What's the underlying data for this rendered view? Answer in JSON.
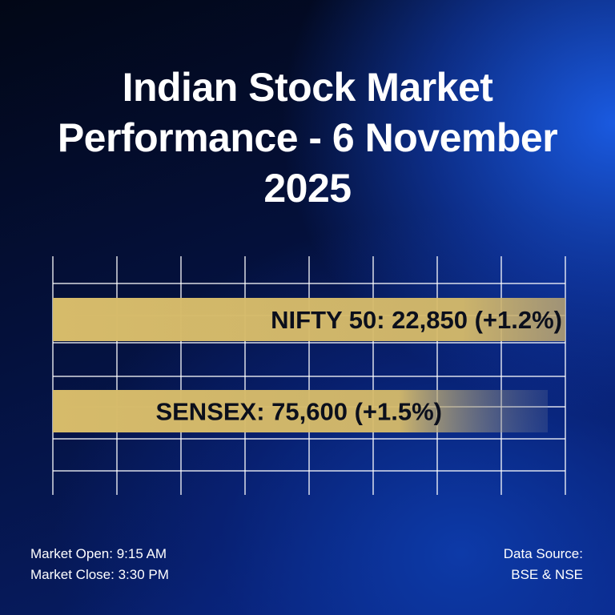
{
  "chart_data": {
    "type": "bar",
    "orientation": "horizontal",
    "title": "Indian Stock Market Performance - 6 November 2025",
    "categories": [
      "NIFTY 50",
      "SENSEX"
    ],
    "bar_labels": [
      "NIFTY 50: 22,850 (+1.2%)",
      "SENSEX: 75,600 (+1.5%)"
    ],
    "values": [
      22850,
      75600
    ],
    "percent_change": [
      1.2,
      1.5
    ],
    "grid": true,
    "bar_color": "#d6bb6a"
  },
  "footer": {
    "market_open": "Market Open: 9:15 AM",
    "market_close": "Market Close: 3:30 PM",
    "source_line1": "Data Source:",
    "source_line2": "BSE & NSE"
  }
}
